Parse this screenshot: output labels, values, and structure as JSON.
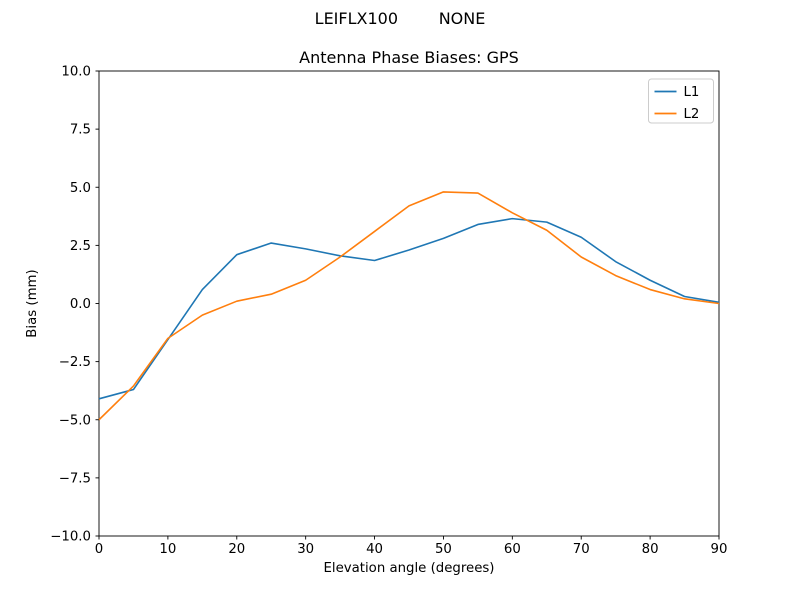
{
  "figure": {
    "suptitle": "LEIFLX100        NONE"
  },
  "chart_data": {
    "type": "line",
    "title": "Antenna Phase Biases: GPS",
    "xlabel": "Elevation angle (degrees)",
    "ylabel": "Bias (mm)",
    "xlim": [
      0,
      90
    ],
    "ylim": [
      -10,
      10
    ],
    "grid": false,
    "legend_position": "upper right",
    "xticks": [
      0,
      10,
      20,
      30,
      40,
      50,
      60,
      70,
      80,
      90
    ],
    "xtick_labels": [
      "0",
      "10",
      "20",
      "30",
      "40",
      "50",
      "60",
      "70",
      "80",
      "90"
    ],
    "yticks": [
      10,
      7.5,
      5,
      2.5,
      0,
      -2.5,
      -5,
      -7.5,
      -10
    ],
    "ytick_labels": [
      "10.0",
      "7.5",
      "5.0",
      "2.5",
      "0.0",
      "−2.5",
      "−5.0",
      "−7.5",
      "−10.0"
    ],
    "x": [
      0,
      5,
      10,
      15,
      20,
      25,
      30,
      35,
      40,
      45,
      50,
      55,
      60,
      65,
      70,
      75,
      80,
      85,
      90
    ],
    "series": [
      {
        "name": "L1",
        "color": "#1f77b4",
        "values": [
          -4.1,
          -3.7,
          -1.55,
          0.6,
          2.1,
          2.6,
          2.35,
          2.05,
          1.85,
          2.3,
          2.8,
          3.4,
          3.65,
          3.5,
          2.85,
          1.8,
          1.0,
          0.3,
          0.05
        ]
      },
      {
        "name": "L2",
        "color": "#ff7f0e",
        "values": [
          -5.0,
          -3.55,
          -1.5,
          -0.5,
          0.1,
          0.4,
          1.0,
          2.0,
          3.1,
          4.2,
          4.8,
          4.75,
          3.9,
          3.15,
          2.0,
          1.2,
          0.6,
          0.2,
          0.0
        ]
      }
    ],
    "colors": {
      "axes": "#000000",
      "legend_border": "#cccccc",
      "background": "#ffffff"
    }
  }
}
